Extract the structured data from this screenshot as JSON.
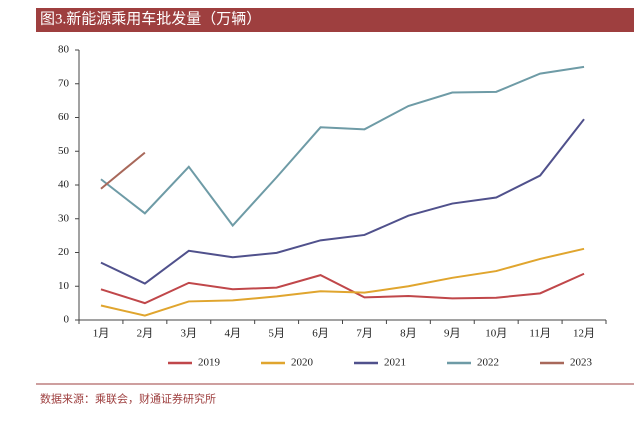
{
  "header": {
    "title": "图3.新能源乘用车批发量（万辆）"
  },
  "chart_data": {
    "type": "line",
    "categories": [
      "1月",
      "2月",
      "3月",
      "4月",
      "5月",
      "6月",
      "7月",
      "8月",
      "9月",
      "10月",
      "11月",
      "12月"
    ],
    "series": [
      {
        "name": "2019",
        "color": "#c0474a",
        "values": [
          9.1,
          5.0,
          11.0,
          9.1,
          9.6,
          13.3,
          6.7,
          7.1,
          6.4,
          6.6,
          7.9,
          13.7
        ]
      },
      {
        "name": "2020",
        "color": "#e0a52e",
        "values": [
          4.3,
          1.3,
          5.5,
          5.8,
          7.0,
          8.5,
          8.1,
          10.0,
          12.5,
          14.5,
          18.1,
          21.1
        ]
      },
      {
        "name": "2021",
        "color": "#50518c",
        "values": [
          17.0,
          10.8,
          20.5,
          18.6,
          19.9,
          23.6,
          25.2,
          30.9,
          34.5,
          36.3,
          42.8,
          59.5
        ]
      },
      {
        "name": "2022",
        "color": "#6e9ba6",
        "values": [
          41.7,
          31.6,
          45.4,
          28.0,
          42.3,
          57.1,
          56.5,
          63.4,
          67.4,
          67.6,
          73.0,
          75.0
        ]
      },
      {
        "name": "2023",
        "color": "#a8685a",
        "values": [
          38.9,
          49.6,
          null,
          null,
          null,
          null,
          null,
          null,
          null,
          null,
          null,
          null
        ]
      }
    ],
    "ylim": [
      0,
      80
    ],
    "yticks": [
      0,
      10,
      20,
      30,
      40,
      50,
      60,
      70,
      80
    ],
    "grid": false
  },
  "footer": {
    "source": "数据来源：乘联会，财通证券研究所"
  }
}
